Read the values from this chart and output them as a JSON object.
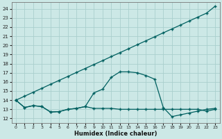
{
  "xlabel": "Humidex (Indice chaleur)",
  "bg_color": "#cce8e6",
  "grid_color": "#aacfcd",
  "line_color": "#006060",
  "xlim": [
    -0.5,
    23.5
  ],
  "ylim": [
    11.5,
    24.7
  ],
  "yticks": [
    12,
    13,
    14,
    15,
    16,
    17,
    18,
    19,
    20,
    21,
    22,
    23,
    24
  ],
  "xticks": [
    0,
    1,
    2,
    3,
    4,
    5,
    6,
    7,
    8,
    9,
    10,
    11,
    12,
    13,
    14,
    15,
    16,
    17,
    18,
    19,
    20,
    21,
    22,
    23
  ],
  "line_diagonal_x": [
    0,
    1,
    2,
    3,
    4,
    5,
    6,
    7,
    8,
    9,
    10,
    11,
    12,
    13,
    14,
    15,
    16,
    17,
    18,
    19,
    20,
    21,
    22,
    23
  ],
  "line_diagonal_y": [
    14.0,
    14.43,
    14.87,
    15.3,
    15.74,
    16.17,
    16.6,
    17.04,
    17.47,
    17.9,
    18.33,
    18.77,
    19.2,
    19.63,
    20.07,
    20.5,
    20.93,
    21.37,
    21.8,
    22.23,
    22.67,
    23.1,
    23.53,
    24.3
  ],
  "line_bell_x": [
    0,
    1,
    2,
    3,
    4,
    5,
    6,
    7,
    8,
    9,
    10,
    11,
    12,
    13,
    14,
    15,
    16,
    17,
    18,
    19,
    20,
    21,
    22,
    23
  ],
  "line_bell_y": [
    14.0,
    13.2,
    13.4,
    13.3,
    12.7,
    12.75,
    13.0,
    13.1,
    13.3,
    14.8,
    15.2,
    16.5,
    17.1,
    17.1,
    17.0,
    16.7,
    16.3,
    13.2,
    12.2,
    12.4,
    12.6,
    12.8,
    13.0,
    13.1
  ],
  "line_flat_x": [
    0,
    1,
    2,
    3,
    4,
    5,
    6,
    7,
    8,
    9,
    10,
    11,
    12,
    13,
    14,
    15,
    16,
    17,
    18,
    19,
    20,
    21,
    22,
    23
  ],
  "line_flat_y": [
    14.0,
    13.2,
    13.4,
    13.3,
    12.7,
    12.75,
    13.0,
    13.1,
    13.3,
    13.1,
    13.1,
    13.1,
    13.0,
    13.0,
    13.0,
    13.0,
    13.0,
    13.0,
    13.0,
    13.0,
    13.0,
    13.0,
    12.8,
    13.0
  ]
}
